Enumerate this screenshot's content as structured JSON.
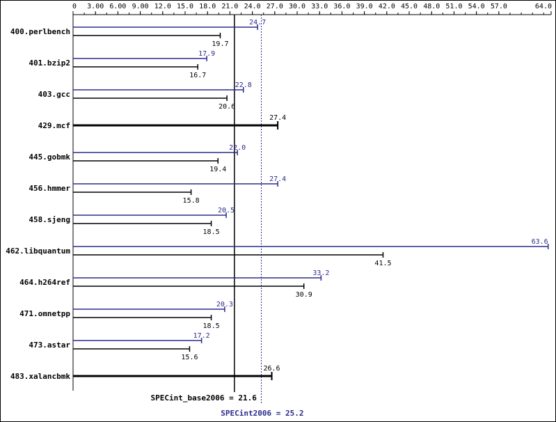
{
  "chart_data": {
    "type": "bar",
    "orientation": "horizontal",
    "xlim": [
      0,
      64
    ],
    "tick_labels": [
      "0",
      "3.00",
      "6.00",
      "9.00",
      "12.0",
      "15.0",
      "18.0",
      "21.0",
      "24.0",
      "27.0",
      "30.0",
      "33.0",
      "36.0",
      "39.0",
      "42.0",
      "45.0",
      "48.0",
      "51.0",
      "54.0",
      "57.0",
      "64.0"
    ],
    "tick_values": [
      0,
      3,
      6,
      9,
      12,
      15,
      18,
      21,
      24,
      27,
      30,
      33,
      36,
      39,
      42,
      45,
      48,
      51,
      54,
      57,
      64
    ],
    "colors": {
      "peak": "#2b2b8c",
      "base": "#000000"
    },
    "benchmarks": [
      {
        "name": "400.perlbench",
        "peak": 24.7,
        "peak_label": "24.7",
        "base": 19.7,
        "base_label": "19.7"
      },
      {
        "name": "401.bzip2",
        "peak": 17.9,
        "peak_label": "17.9",
        "base": 16.7,
        "base_label": "16.7"
      },
      {
        "name": "403.gcc",
        "peak": 22.8,
        "peak_label": "22.8",
        "base": 20.6,
        "base_label": "20.6"
      },
      {
        "name": "429.mcf",
        "peak": null,
        "peak_label": "",
        "base": 27.4,
        "base_label": "27.4"
      },
      {
        "name": "445.gobmk",
        "peak": 22.0,
        "peak_label": "22.0",
        "base": 19.4,
        "base_label": "19.4"
      },
      {
        "name": "456.hmmer",
        "peak": 27.4,
        "peak_label": "27.4",
        "base": 15.8,
        "base_label": "15.8"
      },
      {
        "name": "458.sjeng",
        "peak": 20.5,
        "peak_label": "20.5",
        "base": 18.5,
        "base_label": "18.5"
      },
      {
        "name": "462.libquantum",
        "peak": 63.6,
        "peak_label": "63.6",
        "base": 41.5,
        "base_label": "41.5"
      },
      {
        "name": "464.h264ref",
        "peak": 33.2,
        "peak_label": "33.2",
        "base": 30.9,
        "base_label": "30.9"
      },
      {
        "name": "471.omnetpp",
        "peak": 20.3,
        "peak_label": "20.3",
        "base": 18.5,
        "base_label": "18.5"
      },
      {
        "name": "473.astar",
        "peak": 17.2,
        "peak_label": "17.2",
        "base": 15.6,
        "base_label": "15.6"
      },
      {
        "name": "483.xalancbmk",
        "peak": null,
        "peak_label": "",
        "base": 26.6,
        "base_label": "26.6"
      }
    ],
    "summary_base": {
      "label": "SPECint_base2006 = 21.6",
      "value": 21.6
    },
    "summary_peak": {
      "label": "SPECint2006 = 25.2",
      "value": 25.2
    }
  }
}
